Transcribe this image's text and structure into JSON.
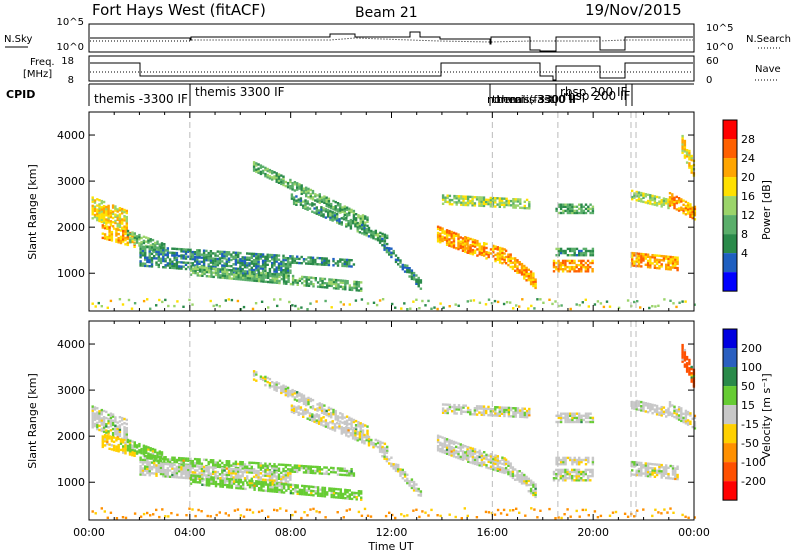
{
  "header": {
    "station": "Fort Hays West (fitACF)",
    "beam": "Beam 21",
    "date": "19/Nov/2015"
  },
  "status_panels": {
    "nsky_label": "N.Sky",
    "nsearch_label": "N.Search",
    "freq_label_1": "Freq.",
    "freq_label_2": "[MHz]",
    "nave_label": "Nave",
    "cpid_label": "CPID",
    "noise_left_ticks": [
      "10^5",
      "10^0"
    ],
    "noise_right_ticks": [
      "10^5",
      "10^0"
    ],
    "freq_ticks": [
      "18",
      "8"
    ],
    "nave_ticks": [
      "60",
      "0"
    ],
    "cpid_entries": [
      {
        "label": "themis -3300 IF",
        "t": 0.0
      },
      {
        "label": "themis 3300 IF",
        "t": 4.0
      },
      {
        "label": "normal (fast)",
        "t": 16.0
      },
      {
        "label": "themis -3300 IF",
        "t": 16.1
      },
      {
        "label": "themis 3300 IF",
        "t": 16.3
      },
      {
        "label": "rbsp 200 IF",
        "t": 18.6
      },
      {
        "label": "rbsp 200 IF",
        "t": 18.8
      }
    ]
  },
  "axes": {
    "xlabel": "Time UT",
    "x_ticks": [
      "00:00",
      "04:00",
      "08:00",
      "12:00",
      "16:00",
      "20:00",
      "00:00"
    ],
    "ylabel": "Slant Range [km]",
    "y_ticks": [
      "1000",
      "2000",
      "3000",
      "4000"
    ]
  },
  "colorbars": {
    "power": {
      "label": "Power [dB]",
      "ticks": [
        "4",
        "8",
        "12",
        "16",
        "20",
        "24",
        "28"
      ],
      "colors": [
        "#0000ff",
        "#1e5fc0",
        "#2a8a4a",
        "#5aae6a",
        "#9bd46a",
        "#ffe000",
        "#ffa500",
        "#ff6000",
        "#ff0000"
      ]
    },
    "velocity": {
      "label": "Velocity [m s⁻¹]",
      "ticks": [
        "200",
        "100",
        "50",
        "15",
        "-15",
        "-50",
        "-100",
        "-200"
      ],
      "colors": [
        "#0000e0",
        "#2a5fc0",
        "#2a8a4a",
        "#66cc33",
        "#c8c8c8",
        "#ffd000",
        "#ff9000",
        "#ff5000",
        "#ff0000"
      ]
    }
  },
  "chart_data": [
    {
      "type": "heatmap",
      "title": "Power",
      "xlabel": "Time UT",
      "ylabel": "Slant Range [km]",
      "xlim": [
        0,
        24
      ],
      "ylim": [
        180,
        4500
      ],
      "colorbar_label": "Power [dB]",
      "colorbar_ticks": [
        4,
        8,
        12,
        16,
        20,
        24,
        28
      ],
      "bands": [
        {
          "x": [
            0.1,
            1.5
          ],
          "y_start": 2400,
          "y_end": 2100,
          "thick": 450,
          "value": 22
        },
        {
          "x": [
            0.5,
            1.8
          ],
          "y_start": 1900,
          "y_end": 1700,
          "thick": 300,
          "value": 26
        },
        {
          "x": [
            1.5,
            3.0
          ],
          "y_start": 1800,
          "y_end": 1500,
          "thick": 250,
          "value": 15
        },
        {
          "x": [
            2.0,
            10.5
          ],
          "y_start": 1500,
          "y_end": 1200,
          "thick": 150,
          "value": 11
        },
        {
          "x": [
            2.0,
            8.0
          ],
          "y_start": 1300,
          "y_end": 1050,
          "thick": 300,
          "value": 10
        },
        {
          "x": [
            4.0,
            10.8
          ],
          "y_start": 1050,
          "y_end": 700,
          "thick": 200,
          "value": 14
        },
        {
          "x": [
            6.5,
            11.0
          ],
          "y_start": 3300,
          "y_end": 2100,
          "thick": 180,
          "value": 14
        },
        {
          "x": [
            8.0,
            11.8
          ],
          "y_start": 2600,
          "y_end": 1700,
          "thick": 180,
          "value": 12
        },
        {
          "x": [
            11.5,
            13.2
          ],
          "y_start": 1700,
          "y_end": 700,
          "thick": 200,
          "value": 10
        },
        {
          "x": [
            13.8,
            15.0
          ],
          "y_start": 1850,
          "y_end": 1600,
          "thick": 350,
          "value": 26
        },
        {
          "x": [
            15.0,
            16.5
          ],
          "y_start": 1600,
          "y_end": 1350,
          "thick": 350,
          "value": 26
        },
        {
          "x": [
            16.5,
            17.7
          ],
          "y_start": 1350,
          "y_end": 800,
          "thick": 300,
          "value": 26
        },
        {
          "x": [
            14.0,
            17.5
          ],
          "y_start": 2600,
          "y_end": 2500,
          "thick": 220,
          "value": 18
        },
        {
          "x": [
            18.4,
            20.0
          ],
          "y_start": 1150,
          "y_end": 1150,
          "thick": 250,
          "value": 27
        },
        {
          "x": [
            18.5,
            20.0
          ],
          "y_start": 1450,
          "y_end": 1450,
          "thick": 150,
          "value": 12
        },
        {
          "x": [
            18.5,
            20.0
          ],
          "y_start": 2400,
          "y_end": 2400,
          "thick": 220,
          "value": 13
        },
        {
          "x": [
            21.5,
            23.3
          ],
          "y_start": 1300,
          "y_end": 1200,
          "thick": 300,
          "value": 26
        },
        {
          "x": [
            21.5,
            23.0
          ],
          "y_start": 2700,
          "y_end": 2500,
          "thick": 220,
          "value": 18
        },
        {
          "x": [
            23.0,
            24.0
          ],
          "y_start": 2600,
          "y_end": 2300,
          "thick": 300,
          "value": 26
        },
        {
          "x": [
            23.5,
            24.0
          ],
          "y_start": 3800,
          "y_end": 3200,
          "thick": 400,
          "value": 22
        }
      ]
    },
    {
      "type": "heatmap",
      "title": "Velocity",
      "xlabel": "Time UT",
      "ylabel": "Slant Range [km]",
      "xlim": [
        0,
        24
      ],
      "ylim": [
        180,
        4500
      ],
      "colorbar_label": "Velocity [m s⁻¹]",
      "colorbar_ticks": [
        -200,
        -100,
        -50,
        -15,
        15,
        50,
        100,
        200
      ],
      "bands": [
        {
          "x": [
            0.1,
            1.5
          ],
          "y_start": 2400,
          "y_end": 2100,
          "thick": 450,
          "value": 0
        },
        {
          "x": [
            0.5,
            1.8
          ],
          "y_start": 1900,
          "y_end": 1700,
          "thick": 300,
          "value": -30
        },
        {
          "x": [
            1.5,
            3.0
          ],
          "y_start": 1800,
          "y_end": 1500,
          "thick": 250,
          "value": 30
        },
        {
          "x": [
            2.0,
            10.5
          ],
          "y_start": 1500,
          "y_end": 1200,
          "thick": 150,
          "value": 30
        },
        {
          "x": [
            2.0,
            8.0
          ],
          "y_start": 1300,
          "y_end": 1050,
          "thick": 300,
          "value": 0
        },
        {
          "x": [
            4.0,
            10.8
          ],
          "y_start": 1050,
          "y_end": 700,
          "thick": 200,
          "value": 30
        },
        {
          "x": [
            6.5,
            11.0
          ],
          "y_start": 3300,
          "y_end": 2100,
          "thick": 180,
          "value": 0
        },
        {
          "x": [
            8.0,
            11.8
          ],
          "y_start": 2600,
          "y_end": 1700,
          "thick": 180,
          "value": 0
        },
        {
          "x": [
            11.5,
            13.2
          ],
          "y_start": 1700,
          "y_end": 700,
          "thick": 200,
          "value": 0
        },
        {
          "x": [
            13.8,
            15.0
          ],
          "y_start": 1850,
          "y_end": 1600,
          "thick": 350,
          "value": 0
        },
        {
          "x": [
            15.0,
            16.5
          ],
          "y_start": 1600,
          "y_end": 1350,
          "thick": 350,
          "value": 0
        },
        {
          "x": [
            16.5,
            17.7
          ],
          "y_start": 1350,
          "y_end": 800,
          "thick": 300,
          "value": 0
        },
        {
          "x": [
            14.0,
            17.5
          ],
          "y_start": 2600,
          "y_end": 2500,
          "thick": 220,
          "value": 0
        },
        {
          "x": [
            18.4,
            20.0
          ],
          "y_start": 1150,
          "y_end": 1150,
          "thick": 250,
          "value": 0
        },
        {
          "x": [
            18.5,
            20.0
          ],
          "y_start": 1450,
          "y_end": 1450,
          "thick": 150,
          "value": 0
        },
        {
          "x": [
            18.5,
            20.0
          ],
          "y_start": 2400,
          "y_end": 2400,
          "thick": 220,
          "value": 0
        },
        {
          "x": [
            21.5,
            23.3
          ],
          "y_start": 1300,
          "y_end": 1200,
          "thick": 300,
          "value": 0
        },
        {
          "x": [
            21.5,
            23.0
          ],
          "y_start": 2700,
          "y_end": 2500,
          "thick": 220,
          "value": 0
        },
        {
          "x": [
            23.0,
            24.0
          ],
          "y_start": 2600,
          "y_end": 2300,
          "thick": 300,
          "value": 0
        },
        {
          "x": [
            23.5,
            24.0
          ],
          "y_start": 3800,
          "y_end": 3200,
          "thick": 400,
          "value": -150
        }
      ]
    }
  ]
}
